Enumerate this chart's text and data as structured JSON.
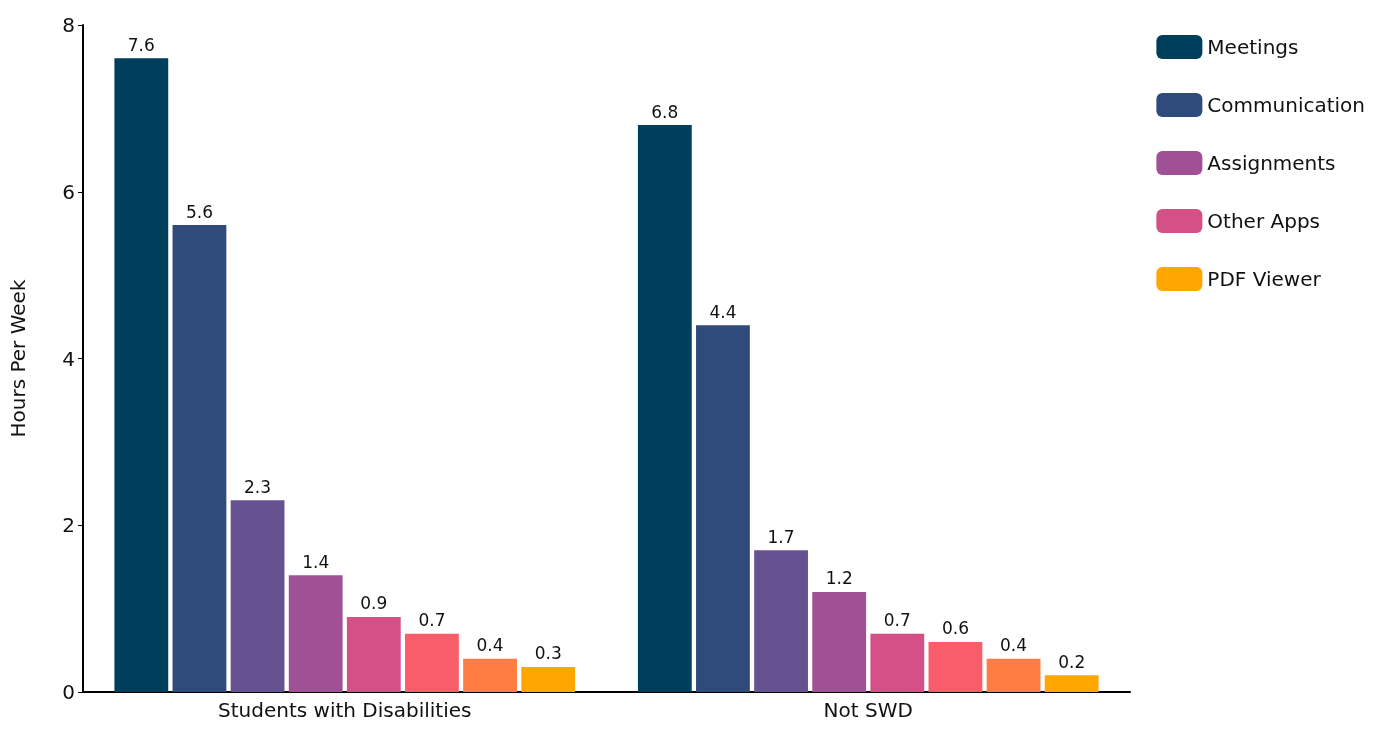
{
  "chart_data": {
    "type": "bar",
    "ylabel": "Hours Per Week",
    "categories": [
      "Students with Disabilities",
      "Not SWD"
    ],
    "series": [
      {
        "name": "Meetings",
        "color": "#003f5c",
        "values": [
          7.6,
          6.8
        ]
      },
      {
        "name": "Communication",
        "color": "#2f4b7c",
        "values": [
          5.6,
          4.4
        ]
      },
      {
        "color": "#665191",
        "values": [
          2.3,
          1.7
        ]
      },
      {
        "name": "Assignments",
        "color": "#a05195",
        "values": [
          1.4,
          1.2
        ]
      },
      {
        "name": "Other Apps",
        "color": "#d45087",
        "values": [
          0.9,
          0.7
        ]
      },
      {
        "color": "#f95d6a",
        "values": [
          0.7,
          0.6
        ]
      },
      {
        "color": "#ff7c43",
        "values": [
          0.4,
          0.4
        ]
      },
      {
        "name": "PDF Viewer",
        "color": "#ffa600",
        "values": [
          0.3,
          0.2
        ]
      }
    ],
    "ylim": [
      0,
      8
    ],
    "yticks": [
      0,
      2,
      4,
      6,
      8
    ],
    "data_labels": true,
    "grid": false,
    "legend": "right"
  }
}
